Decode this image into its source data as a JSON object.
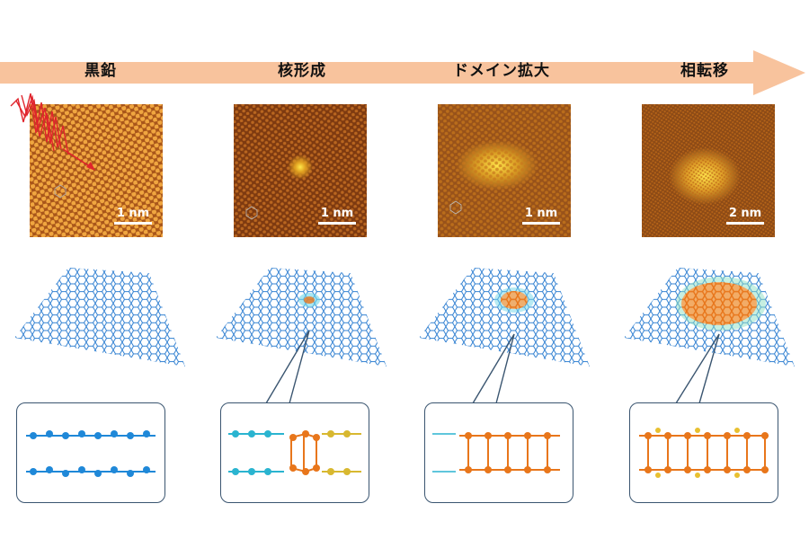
{
  "stages": [
    {
      "label": "黒鉛",
      "scale_label": "1 nm"
    },
    {
      "label": "核形成",
      "scale_label": "1 nm"
    },
    {
      "label": "ドメイン拡大",
      "scale_label": "1 nm"
    },
    {
      "label": "相転移",
      "scale_label": "2 nm"
    }
  ],
  "colors": {
    "arrow": "#f8c39d",
    "stm_base": "#b25a12",
    "stm_bright": "#ffe04a",
    "lattice": "#2f7fd1",
    "transformed": "#e8761b",
    "laser": "#e0242c",
    "inset_border": "#3a5570"
  }
}
